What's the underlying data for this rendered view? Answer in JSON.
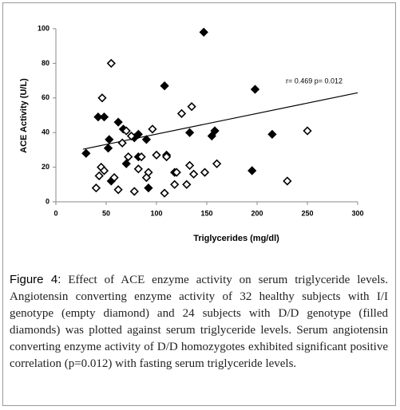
{
  "chart_data": {
    "type": "scatter",
    "x_label": "Triglycerides (mg/dl)",
    "y_label": "ACE Activity (U/L)",
    "annotation": "r= 0.469  p= 0.012",
    "xlim": [
      0,
      300
    ],
    "xticks": [
      0,
      50,
      100,
      150,
      200,
      250,
      300
    ],
    "ylim": [
      0,
      100
    ],
    "yticks": [
      0,
      20,
      40,
      60,
      80,
      100
    ],
    "grid": false,
    "series": [
      {
        "color": "#000000",
        "filled": true,
        "x": [
          30,
          42,
          48,
          52,
          53,
          55,
          62,
          67,
          70,
          78,
          82,
          82,
          90,
          92,
          108,
          110,
          118,
          133,
          147,
          155,
          158,
          198,
          195,
          215
        ],
        "values": [
          28,
          49,
          49,
          31,
          36,
          12,
          46,
          42,
          22,
          37,
          39,
          26,
          36,
          8,
          67,
          27,
          17,
          40,
          98,
          38,
          41,
          65,
          18,
          39
        ]
      },
      {
        "color": "#000000",
        "filled": false,
        "x": [
          40,
          43,
          45,
          46,
          48,
          55,
          58,
          62,
          66,
          70,
          72,
          75,
          78,
          82,
          85,
          92,
          96,
          100,
          108,
          110,
          118,
          120,
          125,
          130,
          133,
          135,
          137,
          148,
          160,
          250,
          230,
          90
        ],
        "values": [
          8,
          15,
          20,
          60,
          18,
          80,
          14,
          7,
          34,
          41,
          26,
          38,
          6,
          19,
          26,
          17,
          42,
          27,
          5,
          26,
          10,
          17,
          51,
          10,
          21,
          55,
          16,
          17,
          22,
          41,
          12,
          14
        ]
      }
    ],
    "trendline": {
      "color": "#000000",
      "x": [
        27,
        300
      ],
      "values": [
        30.4,
        63
      ]
    },
    "caption_label": "Figure 4:",
    "caption": "Effect of ACE enzyme activity on serum triglyceride levels. Angiotensin converting enzyme activity of 32 healthy subjects with I/I genotype (empty diamond) and 24 subjects with D/D genotype (filled diamonds) was plotted against serum triglyceride levels. Serum angiotensin converting enzyme activity of D/D homozygotes exhibited significant positive correlation (p=0.012) with fasting serum triglyceride levels."
  }
}
